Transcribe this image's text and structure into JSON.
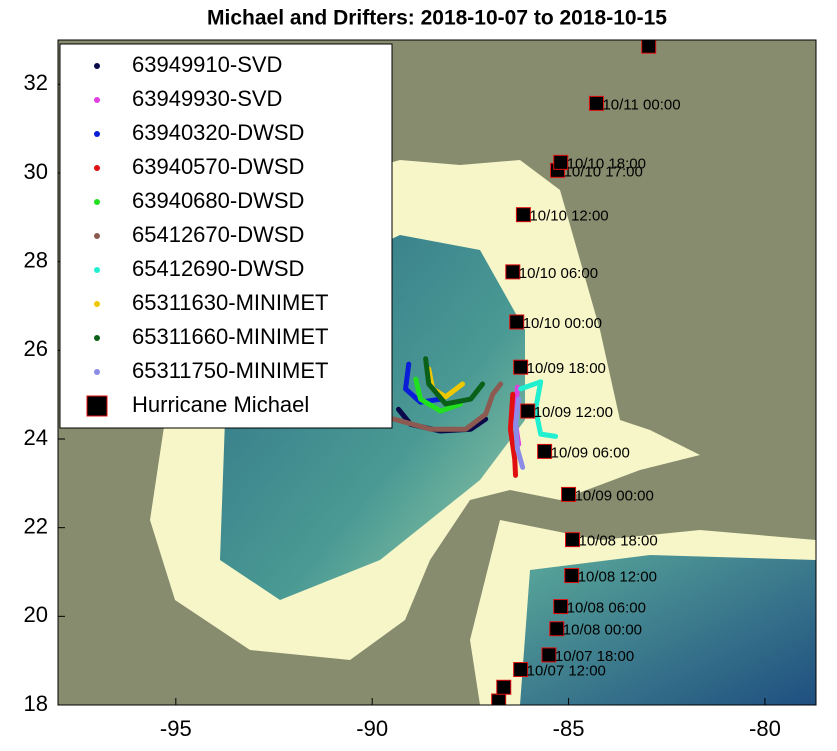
{
  "chart_data": {
    "type": "map-track",
    "title": "Michael and Drifters: 2018-10-07 to 2018-10-15",
    "xlim": [
      -98,
      -78.7
    ],
    "ylim": [
      18,
      33
    ],
    "xticks": [
      -95,
      -90,
      -85,
      -80
    ],
    "yticks": [
      18,
      20,
      22,
      24,
      26,
      28,
      30,
      32
    ],
    "legend": "upper left",
    "series": [
      {
        "name": "63949910-SVD",
        "color": "#0a0a4a",
        "marker": "dot",
        "x": [
          -89.33,
          -89.02,
          -88.26,
          -87.49,
          -87.11
        ],
        "y": [
          24.67,
          24.33,
          24.18,
          24.22,
          24.45
        ]
      },
      {
        "name": "63949930-SVD",
        "color": "#e040e0",
        "marker": "dot",
        "x": [
          -86.3,
          -86.37,
          -86.27
        ],
        "y": [
          25.17,
          24.45,
          23.88
        ]
      },
      {
        "name": "63940320-DWSD",
        "color": "#0a1ed8",
        "marker": "dot",
        "x": [
          -89.07,
          -89.15,
          -88.77,
          -88.26
        ],
        "y": [
          25.69,
          25.13,
          24.83,
          24.9
        ]
      },
      {
        "name": "63940570-DWSD",
        "color": "#e01010",
        "marker": "dot",
        "x": [
          -86.42,
          -86.48,
          -86.37,
          -86.35
        ],
        "y": [
          25.01,
          24.22,
          23.54,
          23.18
        ]
      },
      {
        "name": "63940680-DWSD",
        "color": "#20e020",
        "marker": "dot",
        "x": [
          -88.89,
          -88.77,
          -88.26,
          -87.75
        ],
        "y": [
          25.35,
          24.9,
          24.63,
          24.79
        ]
      },
      {
        "name": "65412670-DWSD",
        "color": "#8c5a50",
        "marker": "dot",
        "x": [
          -89.45,
          -88.51,
          -87.62,
          -87.11,
          -86.93,
          -86.73
        ],
        "y": [
          24.45,
          24.22,
          24.22,
          24.56,
          25.01,
          25.24
        ]
      },
      {
        "name": "65412690-DWSD",
        "color": "#20f0d0",
        "marker": "dot",
        "x": [
          -86.22,
          -85.71,
          -85.84,
          -85.71,
          -85.33
        ],
        "y": [
          25.13,
          25.29,
          24.67,
          24.11,
          24.06
        ]
      },
      {
        "name": "65311630-MINIMET",
        "color": "#f0c800",
        "marker": "dot",
        "x": [
          -88.56,
          -88.46,
          -88.13,
          -87.7
        ],
        "y": [
          25.58,
          25.13,
          24.95,
          25.24
        ]
      },
      {
        "name": "65311660-MINIMET",
        "color": "#0a6018",
        "marker": "dot",
        "x": [
          -88.64,
          -88.56,
          -88.13,
          -87.49,
          -87.19
        ],
        "y": [
          25.81,
          25.24,
          24.79,
          24.9,
          25.24
        ]
      },
      {
        "name": "65311750-MINIMET",
        "color": "#8c8ce8",
        "marker": "dot",
        "x": [
          -86.27,
          -86.35,
          -86.3,
          -86.17
        ],
        "y": [
          24.9,
          24.33,
          23.77,
          23.36
        ]
      },
      {
        "name": "Hurricane Michael",
        "color": "#000000",
        "edge": "#e01010",
        "marker": "square",
        "x": [
          -86.78,
          -86.65,
          -86.22,
          -85.5,
          -85.3,
          -85.2,
          -84.92,
          -84.9,
          -85.0,
          -85.61,
          -86.04,
          -86.22,
          -86.32,
          -86.42,
          -86.15,
          -85.28,
          -85.2,
          -84.29,
          -82.96
        ],
        "y": [
          18.09,
          18.4,
          18.8,
          19.13,
          19.72,
          20.22,
          20.92,
          21.73,
          22.75,
          23.72,
          24.63,
          25.62,
          26.64,
          27.77,
          29.06,
          30.06,
          30.24,
          31.57,
          32.86
        ],
        "labels": [
          null,
          null,
          "10/07 12:00",
          "10/07 18:00",
          "10/08 00:00",
          "10/08 06:00",
          "10/08 12:00",
          "10/08 18:00",
          "10/09 00:00",
          "10/09 06:00",
          "10/09 12:00",
          "10/09 18:00",
          "10/10 00:00",
          "10/10 06:00",
          "10/10 12:00",
          "10/10 17:00",
          "10/10 18:00",
          "10/11 00:00",
          null
        ]
      }
    ]
  }
}
